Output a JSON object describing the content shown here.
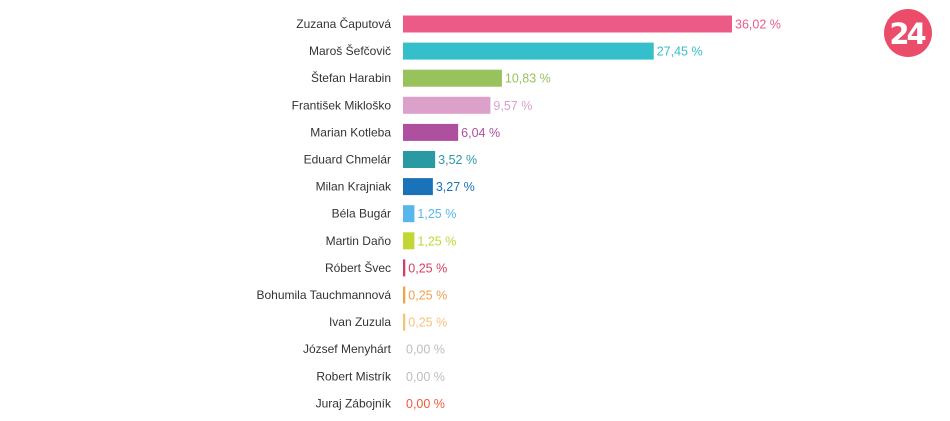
{
  "logo": {
    "text": "24",
    "color": "#ea4c6a"
  },
  "chart_data": {
    "type": "bar",
    "orientation": "horizontal",
    "categories": [
      "Zuzana Čaputová",
      "Maroš Šefčovič",
      "Štefan Harabin",
      "František Mikloško",
      "Marian Kotleba",
      "Eduard Chmelár",
      "Milan Krajniak",
      "Béla Bugár",
      "Martin Daňo",
      "Róbert Švec",
      "Bohumila Tauchmannová",
      "Ivan Zuzula",
      "József Menyhárt",
      "Robert Mistrík",
      "Juraj Zábojník"
    ],
    "values": [
      36.02,
      27.45,
      10.83,
      9.57,
      6.04,
      3.52,
      3.27,
      1.25,
      1.25,
      0.25,
      0.25,
      0.25,
      0.0,
      0.0,
      0.0
    ],
    "value_labels": [
      "36,02 %",
      "27,45 %",
      "10,83 %",
      "9,57 %",
      "6,04 %",
      "3,52 %",
      "3,27 %",
      "1,25 %",
      "1,25 %",
      "0,25 %",
      "0,25 %",
      "0,25 %",
      "0,00 %",
      "0,00 %",
      "0,00 %"
    ],
    "colors": [
      "#ec5b87",
      "#35bfca",
      "#97c25c",
      "#dba1ca",
      "#ae4fa0",
      "#2a9aa2",
      "#1a72b8",
      "#56b7ec",
      "#c4d634",
      "#d43d62",
      "#f0a14c",
      "#f5c27e",
      "#c7c7c7",
      "#c7c7c7",
      "#f0593c"
    ],
    "label_colors": [
      "#ec5b87",
      "#35bfca",
      "#97c25c",
      "#dba1ca",
      "#ae4fa0",
      "#2a9aa2",
      "#1a72b8",
      "#56b7ec",
      "#c4d634",
      "#d43d62",
      "#f0a14c",
      "#f5c27e",
      "#bdbdbd",
      "#bdbdbd",
      "#f0593c"
    ],
    "xlim": [
      0,
      36.02
    ],
    "grid": false,
    "legend": "none"
  }
}
